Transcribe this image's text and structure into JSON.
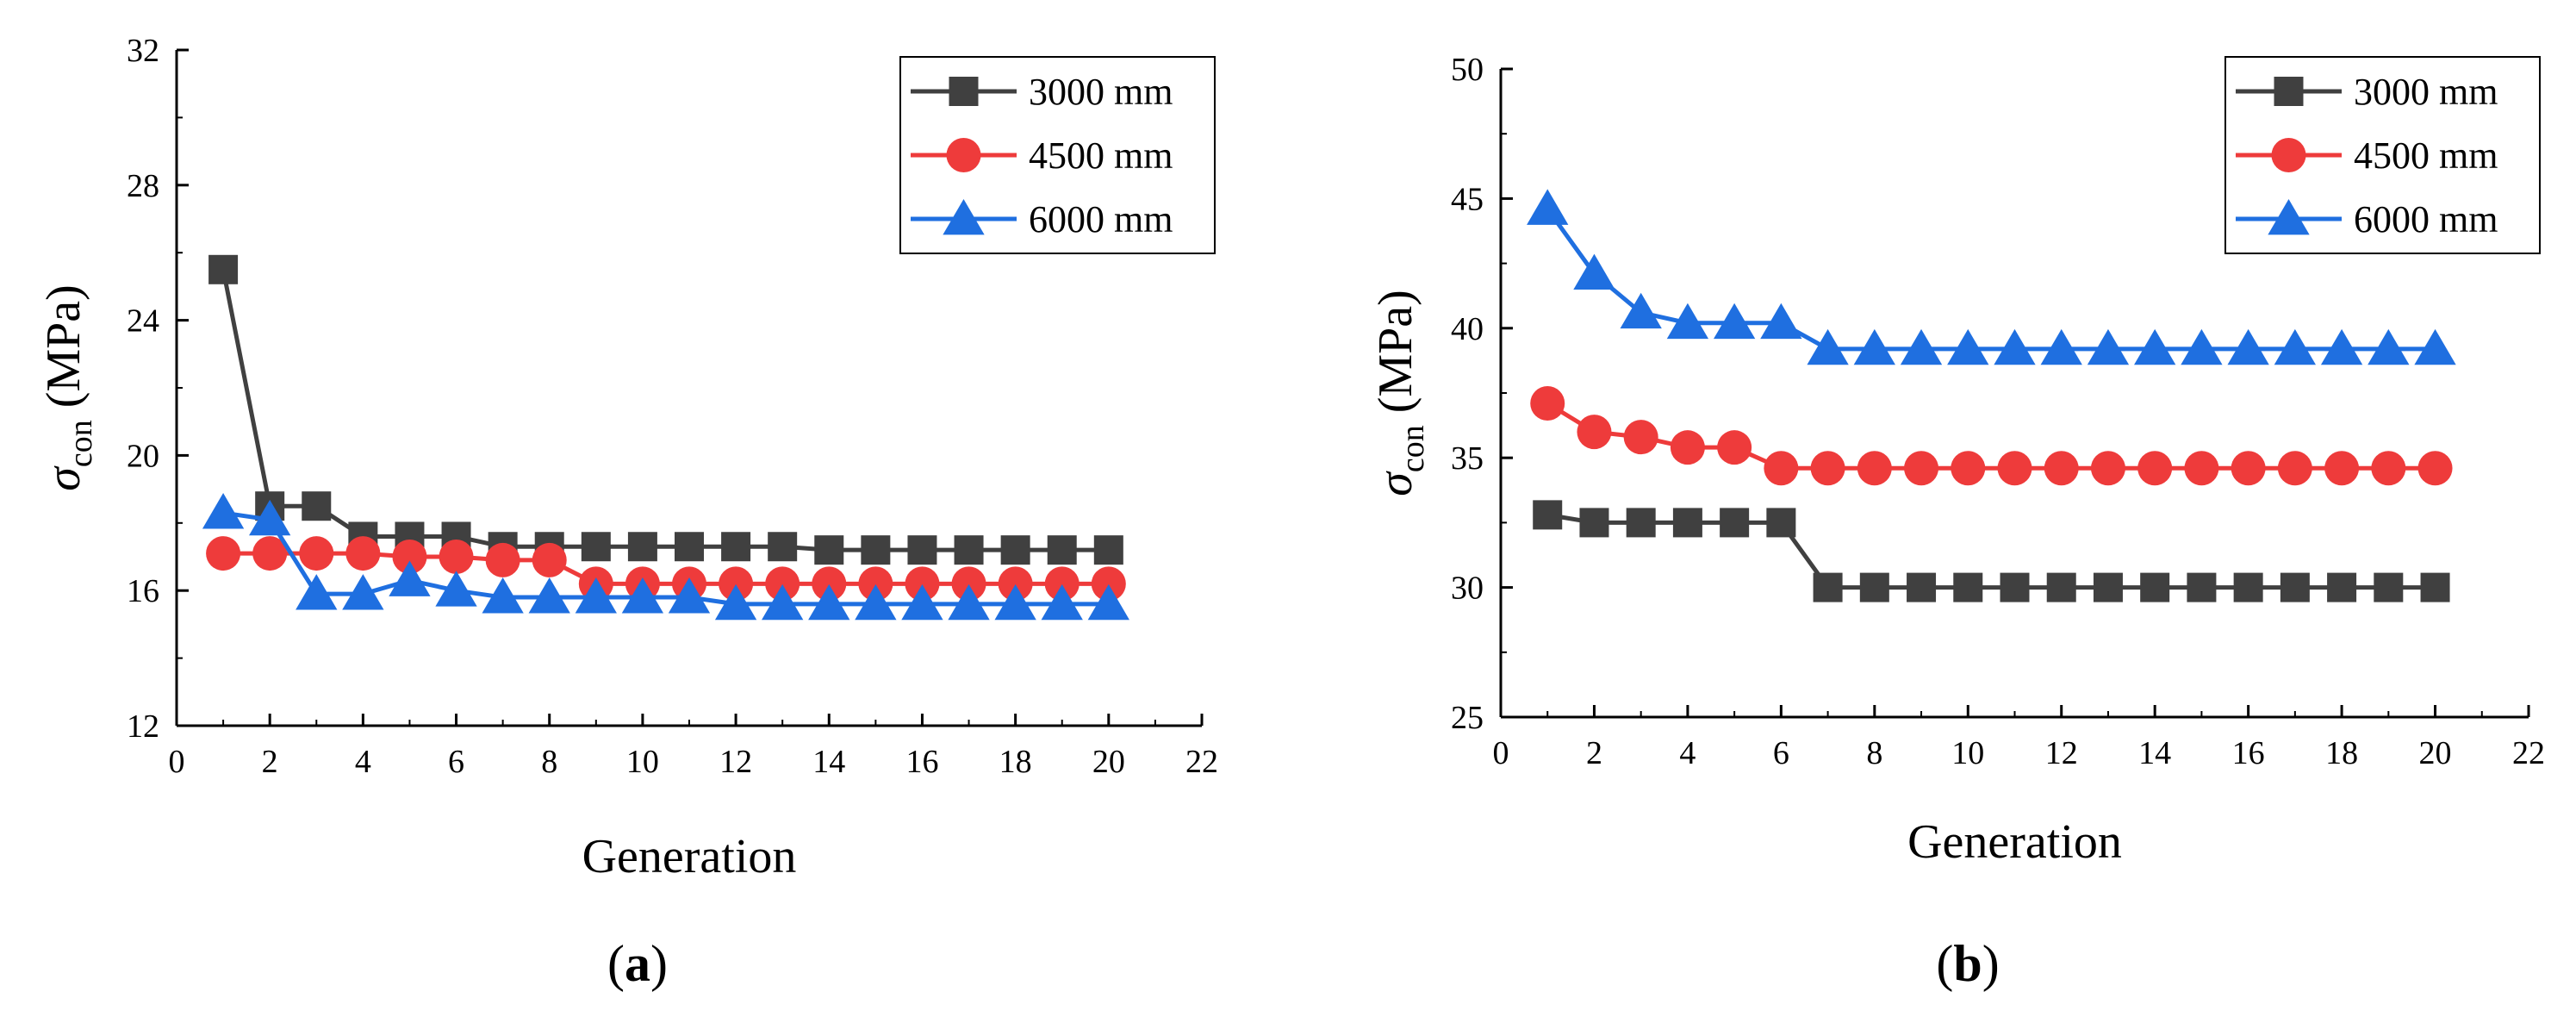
{
  "chart_data": [
    {
      "type": "line",
      "panel_label": "a",
      "x": [
        1,
        2,
        3,
        4,
        5,
        6,
        7,
        8,
        9,
        10,
        11,
        12,
        13,
        14,
        15,
        16,
        17,
        18,
        19,
        20
      ],
      "series": [
        {
          "name": "3000 mm",
          "marker": "square",
          "color": "#404040",
          "values": [
            25.5,
            18.5,
            18.5,
            17.6,
            17.6,
            17.6,
            17.3,
            17.3,
            17.3,
            17.3,
            17.3,
            17.3,
            17.3,
            17.2,
            17.2,
            17.2,
            17.2,
            17.2,
            17.2,
            17.2
          ]
        },
        {
          "name": "4500 mm",
          "marker": "circle",
          "color": "#ee3b3b",
          "values": [
            17.1,
            17.1,
            17.1,
            17.1,
            17.0,
            17.0,
            16.9,
            16.9,
            16.2,
            16.2,
            16.2,
            16.2,
            16.2,
            16.2,
            16.2,
            16.2,
            16.2,
            16.2,
            16.2,
            16.2
          ]
        },
        {
          "name": "6000 mm",
          "marker": "triangle",
          "color": "#1f6fe0",
          "values": [
            18.3,
            18.1,
            15.9,
            15.9,
            16.3,
            16.0,
            15.8,
            15.8,
            15.8,
            15.8,
            15.8,
            15.6,
            15.6,
            15.6,
            15.6,
            15.6,
            15.6,
            15.6,
            15.6,
            15.6
          ]
        }
      ],
      "xlabel": "Generation",
      "ylabel_symbol": "σ",
      "ylabel_subscript": "con",
      "ylabel_unit": "(MPa)",
      "xlim": [
        0,
        22
      ],
      "ylim": [
        12,
        32
      ],
      "xticks": [
        0,
        2,
        4,
        6,
        8,
        10,
        12,
        14,
        16,
        18,
        20,
        22
      ],
      "yticks": [
        12,
        16,
        20,
        24,
        28,
        32
      ],
      "legend_position": "top-right",
      "grid": false
    },
    {
      "type": "line",
      "panel_label": "b",
      "x": [
        1,
        2,
        3,
        4,
        5,
        6,
        7,
        8,
        9,
        10,
        11,
        12,
        13,
        14,
        15,
        16,
        17,
        18,
        19,
        20
      ],
      "series": [
        {
          "name": "3000 mm",
          "marker": "square",
          "color": "#404040",
          "values": [
            32.8,
            32.5,
            32.5,
            32.5,
            32.5,
            32.5,
            30.0,
            30.0,
            30.0,
            30.0,
            30.0,
            30.0,
            30.0,
            30.0,
            30.0,
            30.0,
            30.0,
            30.0,
            30.0,
            30.0
          ]
        },
        {
          "name": "4500 mm",
          "marker": "circle",
          "color": "#ee3b3b",
          "values": [
            37.1,
            36.0,
            35.8,
            35.4,
            35.4,
            34.6,
            34.6,
            34.6,
            34.6,
            34.6,
            34.6,
            34.6,
            34.6,
            34.6,
            34.6,
            34.6,
            34.6,
            34.6,
            34.6,
            34.6
          ]
        },
        {
          "name": "6000 mm",
          "marker": "triangle",
          "color": "#1f6fe0",
          "values": [
            44.6,
            42.1,
            40.6,
            40.2,
            40.2,
            40.2,
            39.2,
            39.2,
            39.2,
            39.2,
            39.2,
            39.2,
            39.2,
            39.2,
            39.2,
            39.2,
            39.2,
            39.2,
            39.2,
            39.2
          ]
        }
      ],
      "xlabel": "Generation",
      "ylabel_symbol": "σ",
      "ylabel_subscript": "con",
      "ylabel_unit": "(MPa)",
      "xlim": [
        0,
        22
      ],
      "ylim": [
        25,
        50
      ],
      "xticks": [
        0,
        2,
        4,
        6,
        8,
        10,
        12,
        14,
        16,
        18,
        20,
        22
      ],
      "yticks": [
        25,
        30,
        35,
        40,
        45,
        50
      ],
      "legend_position": "top-right",
      "grid": false
    }
  ]
}
